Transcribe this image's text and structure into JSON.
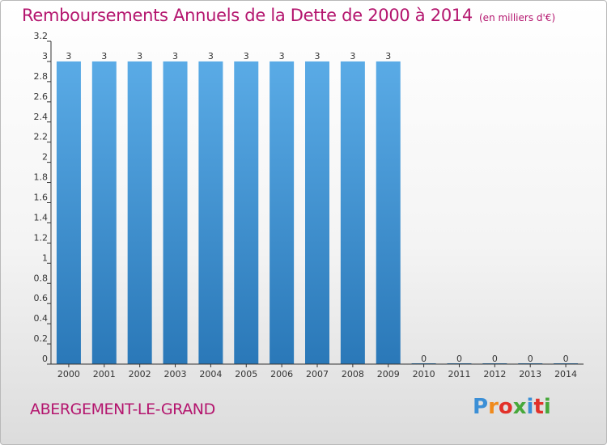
{
  "header": {
    "title": "Remboursements Annuels de la Dette de 2000 à 2014",
    "unit": "(en milliers d'€)"
  },
  "footer": {
    "town": "ABERGEMENT-LE-GRAND",
    "logo_text": "Proxiti"
  },
  "colors": {
    "accent": "#b4156e",
    "bar_top": "#5aabe6",
    "bar_bottom": "#2a78b8",
    "axis": "#333333"
  },
  "chart_data": {
    "type": "bar",
    "title": "Remboursements Annuels de la Dette de 2000 à 2014",
    "subtitle": "(en milliers d'€)",
    "xlabel": "",
    "ylabel": "",
    "ylim": [
      0,
      3.2
    ],
    "grid": false,
    "categories": [
      "2000",
      "2001",
      "2002",
      "2003",
      "2004",
      "2005",
      "2006",
      "2007",
      "2008",
      "2009",
      "2010",
      "2011",
      "2012",
      "2013",
      "2014"
    ],
    "values": [
      3,
      3,
      3,
      3,
      3,
      3,
      3,
      3,
      3,
      3,
      0,
      0,
      0,
      0,
      0
    ],
    "data_labels": [
      "3",
      "3",
      "3",
      "3",
      "3",
      "3",
      "3",
      "3",
      "3",
      "3",
      "0",
      "0",
      "0",
      "0",
      "0"
    ],
    "y_ticks": [
      {
        "value": 0,
        "label": "0"
      },
      {
        "value": 0.2,
        "label": "0.2"
      },
      {
        "value": 0.4,
        "label": "0.4"
      },
      {
        "value": 0.6,
        "label": "0.6"
      },
      {
        "value": 0.8,
        "label": "0.8"
      },
      {
        "value": 1,
        "label": "1"
      },
      {
        "value": 1.2,
        "label": "1.2"
      },
      {
        "value": 1.4,
        "label": "1.4"
      },
      {
        "value": 1.6,
        "label": "1.6"
      },
      {
        "value": 1.8,
        "label": "1.8"
      },
      {
        "value": 2,
        "label": "2"
      },
      {
        "value": 2.2,
        "label": "2.2"
      },
      {
        "value": 2.4,
        "label": "2.4"
      },
      {
        "value": 2.6,
        "label": "2.6"
      },
      {
        "value": 2.8,
        "label": "2.8"
      },
      {
        "value": 3,
        "label": "3"
      },
      {
        "value": 3.2,
        "label": "3.2"
      }
    ]
  }
}
